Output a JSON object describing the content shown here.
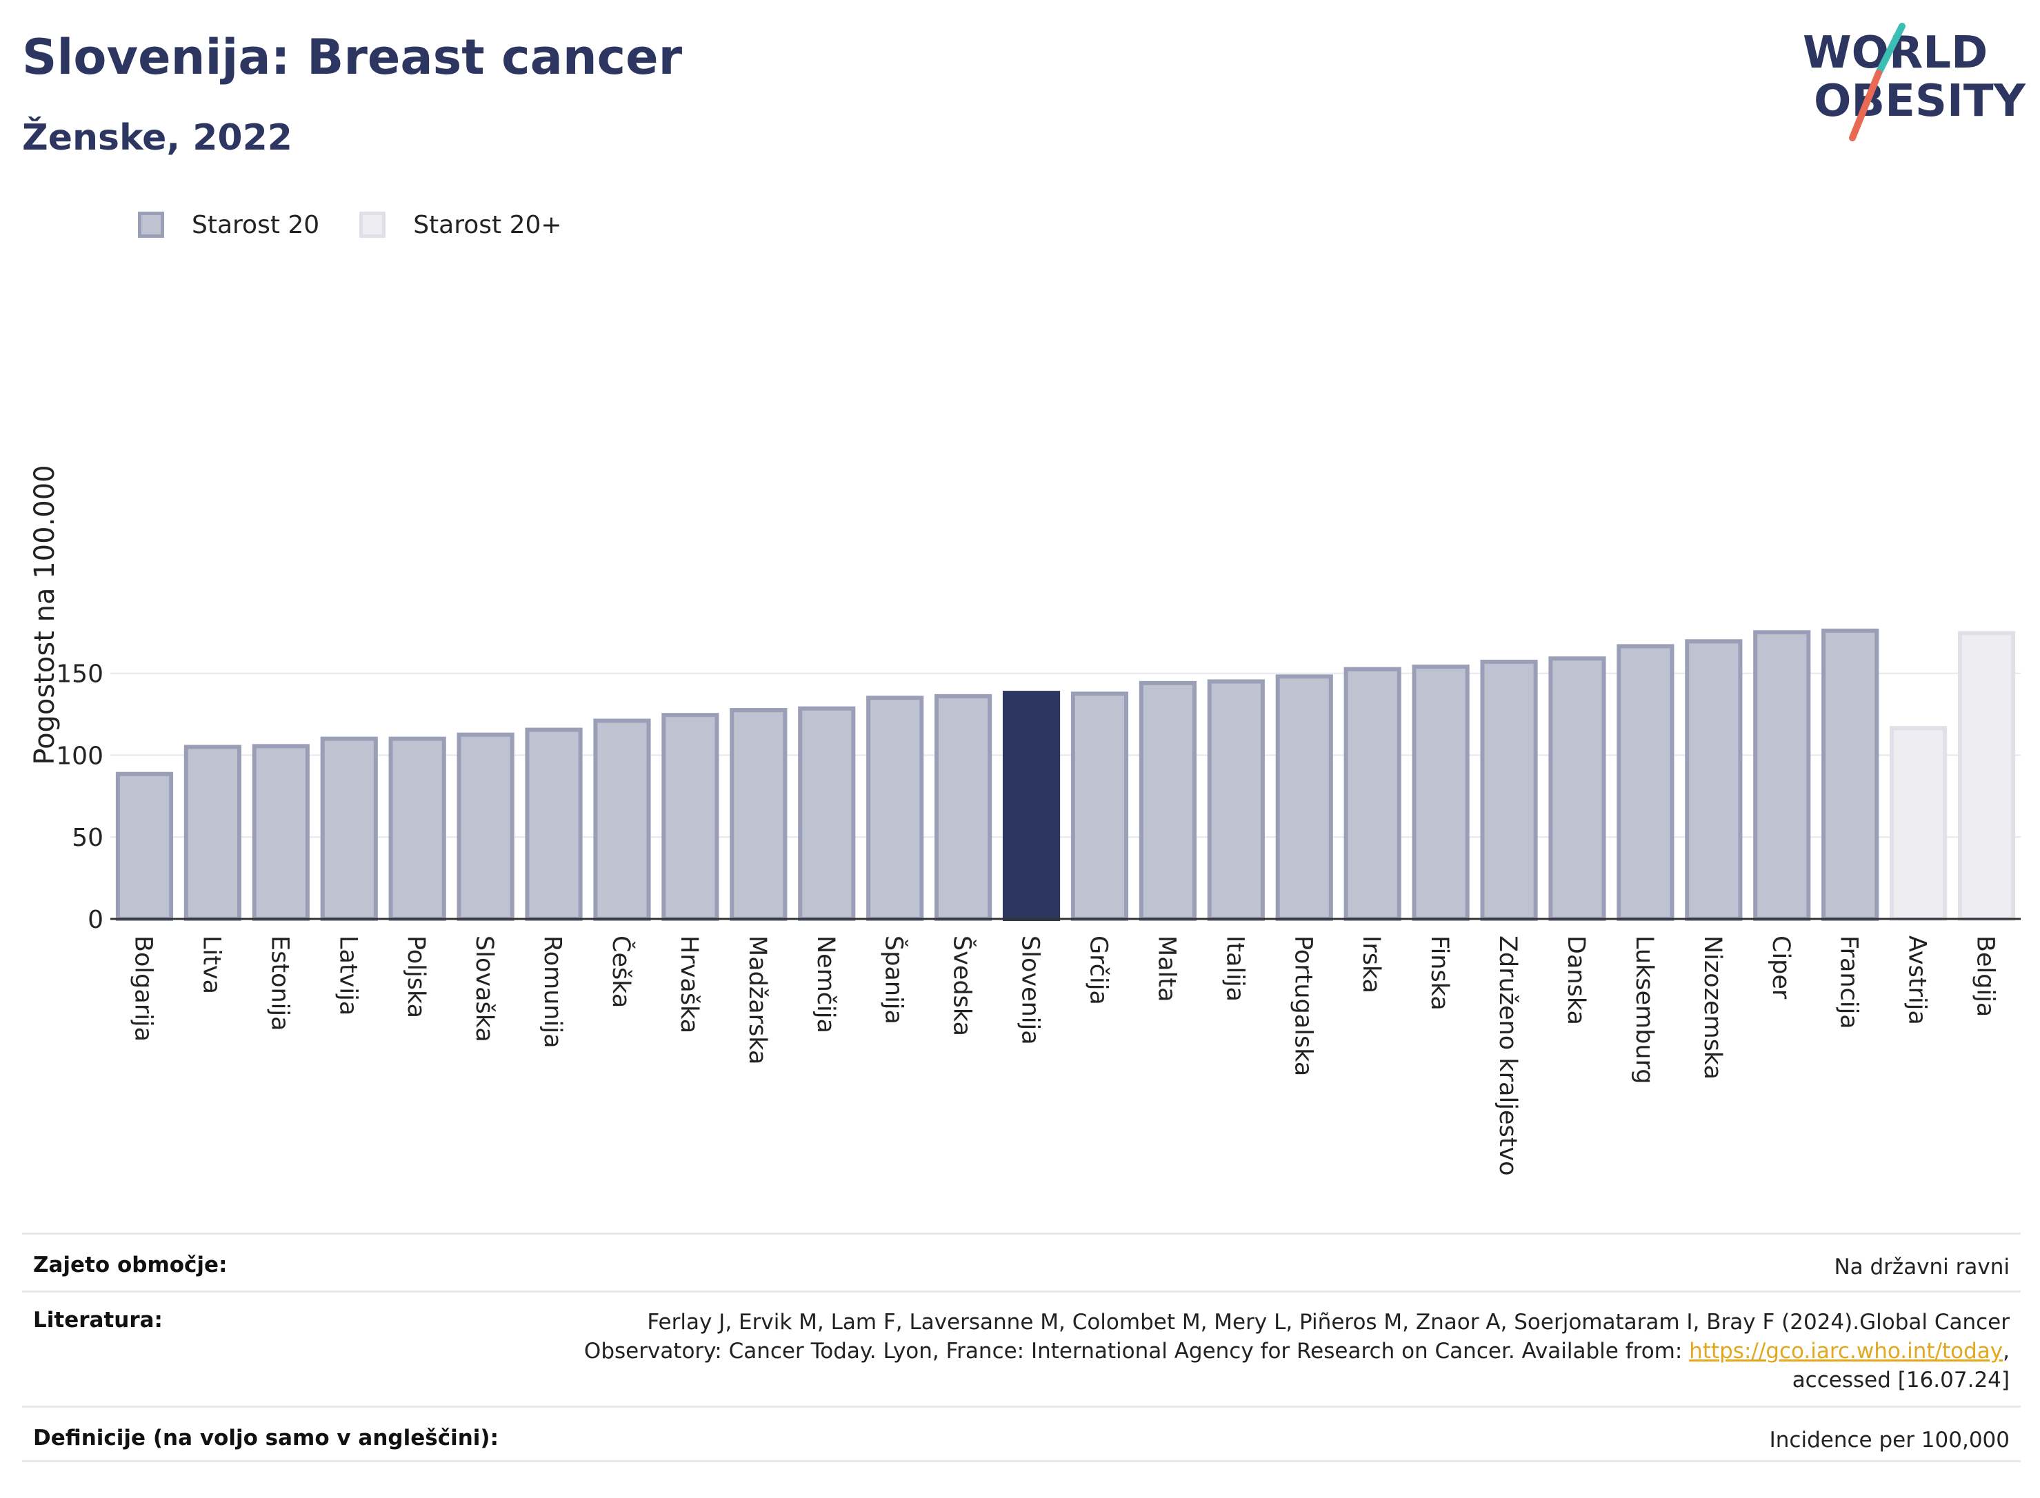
{
  "header": {
    "title": "Slovenija: Breast cancer",
    "subtitle": "Ženske, 2022"
  },
  "logo": {
    "line1": "WORLD",
    "line2": "OBESITY"
  },
  "colors": {
    "bar_fill": "#bfc2d0",
    "bar_stroke": "#9a9fb7",
    "highlight": "#2d3561",
    "light_fill": "#ededf2",
    "light_stroke": "#e0e1e8",
    "logo_teal": "#3bbfb4",
    "logo_coral": "#e86a55",
    "link": "#e2a81e"
  },
  "legend": [
    {
      "label": "Starost 20",
      "color": "#bfc2d0"
    },
    {
      "label": "Starost 20+",
      "color": "#ededf2"
    }
  ],
  "chart_data": {
    "type": "bar",
    "ylabel": "Pogostost na 100.000",
    "ylim": [
      0,
      200
    ],
    "yticks": [
      0,
      50,
      100,
      150
    ],
    "grid": true,
    "legend_position": "top-left",
    "categories": [
      "Bolgarija",
      "Litva",
      "Estonija",
      "Latvija",
      "Poljska",
      "Slovaška",
      "Romunija",
      "Češka",
      "Hrvaška",
      "Madžarska",
      "Nemčija",
      "Španija",
      "Švedska",
      "Slovenija",
      "Grčija",
      "Malta",
      "Italija",
      "Portugalska",
      "Irska",
      "Finska",
      "Združeno kraljestvo",
      "Danska",
      "Luksemburg",
      "Nizozemska",
      "Ciper",
      "Francija",
      "Avstrija",
      "Belgija"
    ],
    "values": [
      88.5,
      105,
      105.5,
      110,
      110,
      112.5,
      115.5,
      121,
      124.5,
      127.5,
      128.5,
      135,
      136,
      138,
      137.5,
      144,
      145,
      148,
      152.5,
      154,
      157,
      159,
      166.5,
      169.5,
      175,
      176,
      116.5,
      174.5
    ],
    "series_of_bar": [
      "Starost 20",
      "Starost 20",
      "Starost 20",
      "Starost 20",
      "Starost 20",
      "Starost 20",
      "Starost 20",
      "Starost 20",
      "Starost 20",
      "Starost 20",
      "Starost 20",
      "Starost 20",
      "Starost 20",
      "Starost 20",
      "Starost 20",
      "Starost 20",
      "Starost 20",
      "Starost 20",
      "Starost 20",
      "Starost 20",
      "Starost 20",
      "Starost 20",
      "Starost 20",
      "Starost 20",
      "Starost 20",
      "Starost 20",
      "Starost 20+",
      "Starost 20+"
    ],
    "highlight": "Slovenija"
  },
  "footer": {
    "coverage_label": "Zajeto območje:",
    "coverage_value": "Na državni ravni",
    "literature_label": "Literatura:",
    "literature_line1": "Ferlay J, Ervik M, Lam F, Laversanne M, Colombet M, Mery L, Piñeros M, Znaor A, Soerjomataram I, Bray F (2024).Global Cancer",
    "literature_line2_prefix": "Observatory: Cancer Today. Lyon, France: International Agency for Research on Cancer. Available from: ",
    "literature_link": "https://gco.iarc.who.int/today",
    "literature_line2_suffix": ",",
    "literature_line3": "accessed [16.07.24]",
    "definitions_label": "Definicije (na voljo samo v angleščini):",
    "definitions_value": "Incidence per 100,000"
  }
}
